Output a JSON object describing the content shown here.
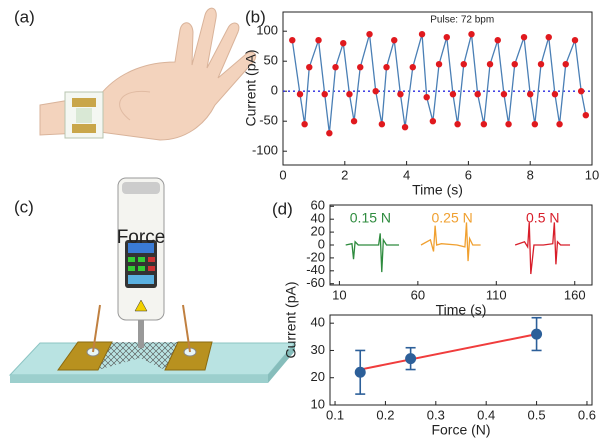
{
  "figure": {
    "panels": [
      "(a)",
      "(b)",
      "(c)",
      "(d)"
    ],
    "device_label": "Force"
  },
  "chart_data": [
    {
      "type": "line",
      "annotation": "Pulse: 72 bpm",
      "xlabel": "Time (s)",
      "ylabel": "Current (pA)",
      "x": [
        0.3,
        0.55,
        0.7,
        0.85,
        1.15,
        1.35,
        1.5,
        1.7,
        1.95,
        2.15,
        2.3,
        2.5,
        2.8,
        3.0,
        3.2,
        3.35,
        3.6,
        3.8,
        3.95,
        4.2,
        4.5,
        4.65,
        4.85,
        5.05,
        5.3,
        5.5,
        5.65,
        5.85,
        6.1,
        6.3,
        6.5,
        6.7,
        6.95,
        7.15,
        7.3,
        7.5,
        7.8,
        8.0,
        8.15,
        8.35,
        8.6,
        8.8,
        8.95,
        9.15,
        9.45,
        9.65,
        9.8
      ],
      "values": [
        85,
        -5,
        -55,
        40,
        85,
        -5,
        -70,
        40,
        80,
        -5,
        -50,
        40,
        95,
        0,
        -55,
        40,
        85,
        -5,
        -60,
        40,
        95,
        -10,
        -50,
        45,
        90,
        -5,
        -55,
        45,
        95,
        -5,
        -55,
        45,
        85,
        -5,
        -55,
        45,
        90,
        -5,
        -55,
        45,
        90,
        -5,
        -55,
        45,
        85,
        0,
        -40
      ],
      "color": "#4a7fb5",
      "marker_color": "#e0191e",
      "reference_line": 0,
      "reference_color": "#2a2ae0",
      "xlim": [
        0,
        10
      ],
      "xticks": [
        0,
        2,
        4,
        6,
        8,
        10
      ],
      "ylim": [
        -123,
        132
      ],
      "yticks": [
        -100,
        -50,
        0,
        50,
        100
      ]
    },
    {
      "type": "line",
      "xlabel": "Time (s)",
      "series": [
        {
          "name": "0.15 N",
          "color": "#2e8b3e",
          "x": [
            14,
            18,
            19,
            20,
            22,
            30,
            35,
            36,
            37,
            38,
            40,
            48
          ],
          "values": [
            0,
            2,
            -22,
            5,
            0,
            0,
            0,
            18,
            -42,
            8,
            0,
            0
          ]
        },
        {
          "name": "0.25 N",
          "color": "#f0a030",
          "x": [
            62,
            68,
            70,
            71,
            72,
            75,
            85,
            90,
            91,
            92,
            93,
            95,
            100
          ],
          "values": [
            0,
            8,
            -10,
            30,
            0,
            2,
            0,
            -3,
            35,
            -25,
            10,
            0,
            0
          ]
        },
        {
          "name": "0.5 N",
          "color": "#d81e2a",
          "x": [
            122,
            128,
            130,
            131,
            132,
            134,
            140,
            146,
            147,
            148,
            149,
            151,
            157
          ],
          "values": [
            0,
            5,
            -3,
            35,
            -45,
            0,
            0,
            2,
            35,
            -30,
            5,
            0,
            0
          ]
        }
      ],
      "xlim": [
        4,
        171
      ],
      "xticks": [
        10,
        60,
        110,
        160
      ],
      "ylim": [
        -62,
        62
      ],
      "yticks": [
        -60,
        -40,
        -20,
        0,
        20,
        40,
        60
      ]
    },
    {
      "type": "scatter",
      "xlabel": "Force (N)",
      "ylabel": "Current (pA)",
      "x": [
        0.15,
        0.25,
        0.5
      ],
      "values": [
        22,
        27,
        36
      ],
      "errors": [
        8,
        4,
        6
      ],
      "color": "#2c5f99",
      "fit": {
        "x": [
          0.15,
          0.5
        ],
        "values": [
          23,
          36
        ],
        "color": "#f03c3c"
      },
      "xlim": [
        0.09,
        0.61
      ],
      "xticks": [
        0.1,
        0.2,
        0.3,
        0.4,
        0.5,
        0.6
      ],
      "ylim": [
        10,
        43
      ],
      "yticks": [
        10,
        20,
        30,
        40
      ]
    }
  ]
}
